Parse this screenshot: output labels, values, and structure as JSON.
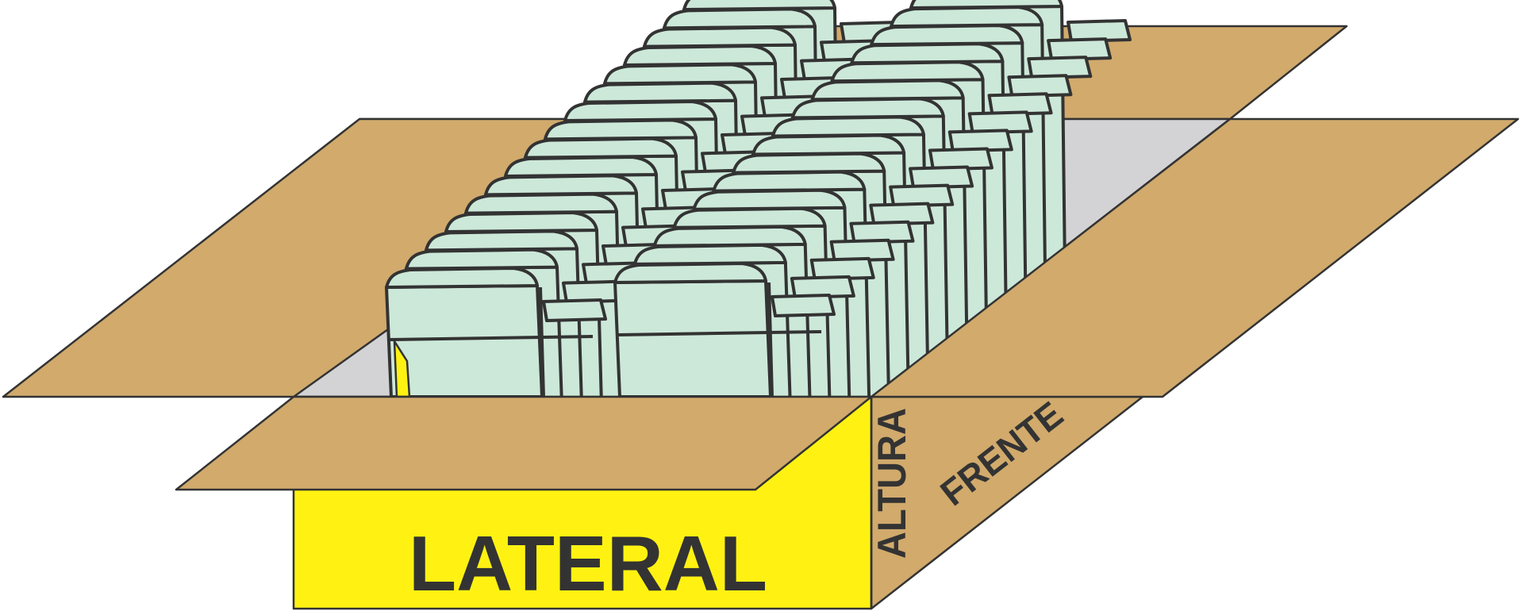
{
  "labels": {
    "side": "LATERAL",
    "height": "ALTURA",
    "front": "FRENTE"
  },
  "colors": {
    "cardboard": "#d1aa6c",
    "side_panel": "#fff212",
    "interior": "#d3d3d5",
    "folders": "#cce8d9",
    "outline": "#333333",
    "background": "#ffffff"
  }
}
